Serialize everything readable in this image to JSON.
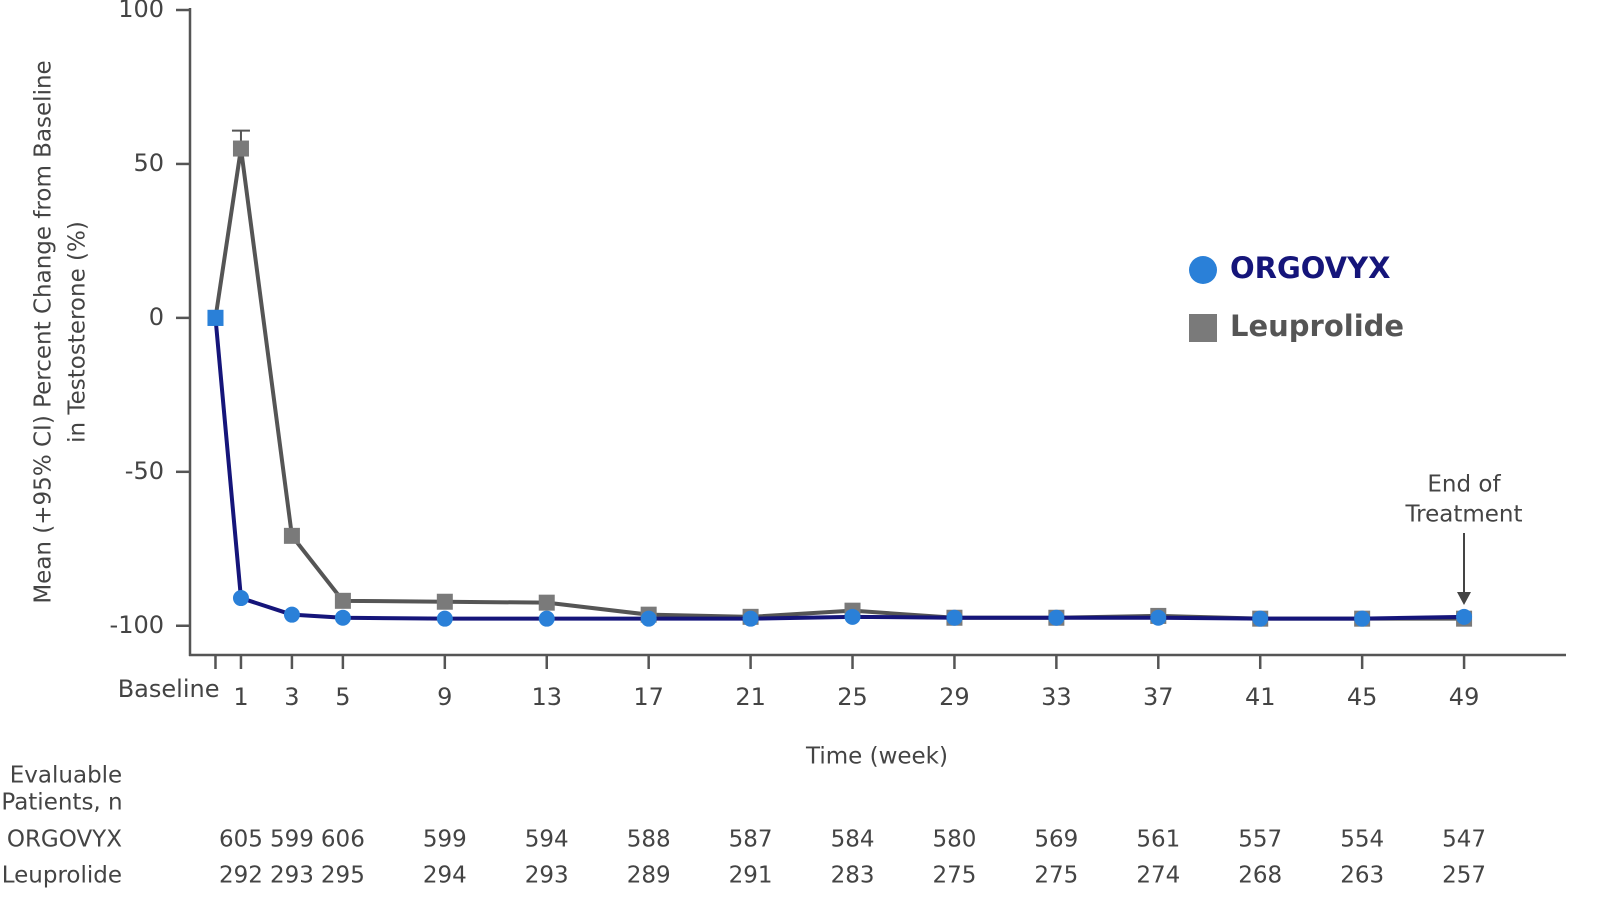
{
  "chart_data": {
    "type": "line",
    "y_label": [
      "Mean (+95% CI) Percent Change from Baseline",
      "in Testosterone (%)"
    ],
    "x_label": "Time (week)",
    "x": [
      0,
      1,
      3,
      5,
      9,
      13,
      17,
      21,
      25,
      29,
      33,
      37,
      41,
      45,
      49
    ],
    "xlim": [
      -1,
      53
    ],
    "xticks": [
      {
        "value": 0,
        "label": "Baseline"
      },
      1,
      3,
      5,
      9,
      13,
      17,
      21,
      25,
      29,
      33,
      37,
      41,
      45,
      49
    ],
    "ylim": [
      -109.5,
      100
    ],
    "yticks": [
      100,
      50,
      0,
      -50,
      -100
    ],
    "series": [
      {
        "name": "ORGOVYX",
        "color": "#15157a",
        "marker_color": "#2a80d8",
        "marker": "circle",
        "values": [
          0,
          -91,
          -96.4,
          -97.4,
          -97.7,
          -97.7,
          -97.7,
          -97.7,
          -97.1,
          -97.4,
          -97.4,
          -97.4,
          -97.7,
          -97.7,
          -97.1
        ]
      },
      {
        "name": "Leuprolide",
        "color": "#555555",
        "marker_color": "#7a7a7a",
        "marker": "square",
        "values": [
          0,
          55,
          -70.8,
          -91.9,
          -92.2,
          -92.5,
          -96.4,
          -97.1,
          -95.1,
          -97.4,
          -97.4,
          -96.8,
          -97.7,
          -97.7,
          -97.7
        ],
        "error_upper": [
          null,
          5.8,
          null,
          null,
          null,
          null,
          null,
          null,
          null,
          null,
          null,
          null,
          null,
          null,
          null
        ]
      }
    ],
    "legend": "right",
    "annotation": [
      "End of",
      "Treatment"
    ],
    "patients_table": {
      "title": [
        "Evaluable",
        "Patients, n"
      ],
      "rows": [
        {
          "name": "ORGOVYX",
          "values": [
            605,
            599,
            606,
            599,
            594,
            588,
            587,
            584,
            580,
            569,
            561,
            557,
            554,
            547
          ]
        },
        {
          "name": "Leuprolide",
          "values": [
            292,
            293,
            295,
            294,
            293,
            289,
            291,
            283,
            275,
            275,
            274,
            268,
            263,
            257
          ]
        }
      ]
    }
  }
}
